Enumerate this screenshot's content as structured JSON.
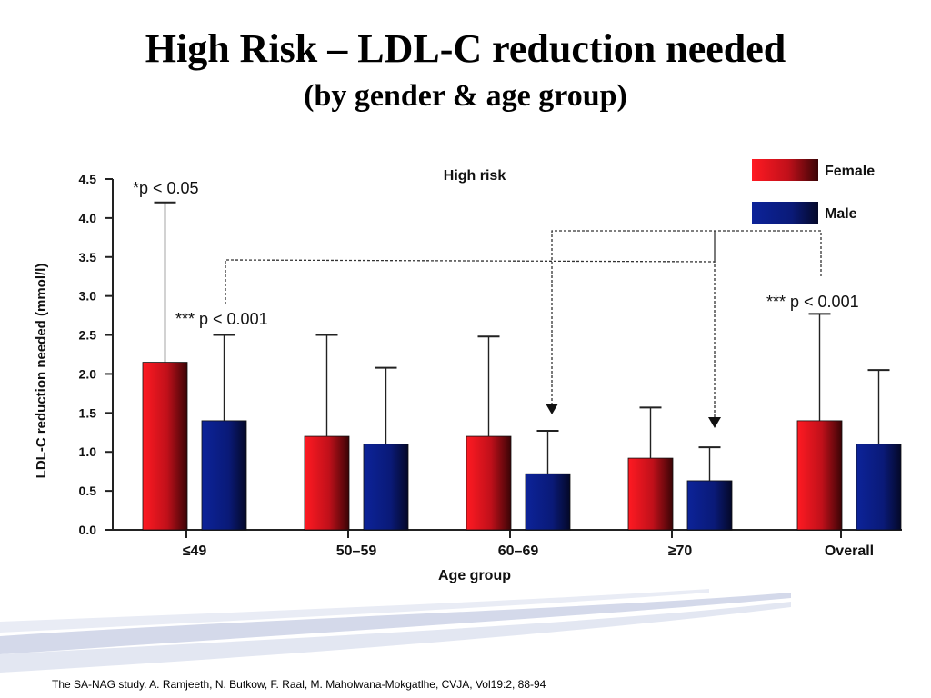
{
  "slide": {
    "title": "High Risk – LDL-C reduction needed",
    "subtitle": "(by gender & age group)",
    "citation": "The SA-NAG study. A. Ramjeeth, N. Butkow, F. Raal, M. Maholwana-Mokgatlhe, CVJA, Vol19:2, 88-94"
  },
  "colors": {
    "female": "#e8101a",
    "female_dark": "#4a0608",
    "male": "#0a1e8c",
    "male_dark": "#050a30",
    "swoosh": "#c9d0e6"
  },
  "chart_data": {
    "type": "bar",
    "title": "High risk",
    "xlabel": "Age group",
    "ylabel": "LDL-C reduction needed (mmol/l)",
    "ylim": [
      0,
      4.5
    ],
    "yticks": [
      "0.0",
      "0.5",
      "1.0",
      "1.5",
      "2.0",
      "2.5",
      "3.0",
      "3.5",
      "4.0",
      "4.5"
    ],
    "categories": [
      "≤49",
      "50–59",
      "60–69",
      "≥70",
      "Overall"
    ],
    "legend_position": "top-right",
    "series": [
      {
        "name": "Female",
        "values": [
          2.15,
          1.2,
          1.2,
          0.92,
          1.4
        ],
        "error_upper": [
          4.2,
          2.5,
          2.48,
          1.57,
          2.77
        ]
      },
      {
        "name": "Male",
        "values": [
          1.4,
          1.1,
          0.72,
          0.63,
          1.1
        ],
        "error_upper": [
          2.5,
          2.08,
          1.27,
          1.06,
          2.05
        ]
      }
    ],
    "annotations": {
      "p1": "*p < 0.05",
      "p2": "*** p < 0.001",
      "p3": "*** p < 0.001"
    }
  }
}
